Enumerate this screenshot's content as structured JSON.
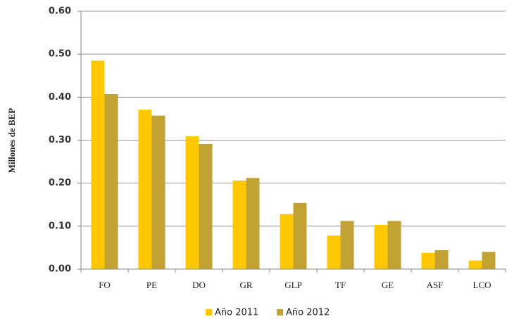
{
  "chart_data": {
    "type": "bar",
    "ylabel": "Millones de BEP",
    "categories": [
      "FO",
      "PE",
      "DO",
      "GR",
      "GLP",
      "TF",
      "GE",
      "ASF",
      "LCO"
    ],
    "series": [
      {
        "name": "Año 2011",
        "color": "#ffc800",
        "values": [
          0.485,
          0.371,
          0.309,
          0.206,
          0.128,
          0.078,
          0.103,
          0.038,
          0.02
        ]
      },
      {
        "name": "Año 2012",
        "color": "#c2a232",
        "values": [
          0.407,
          0.357,
          0.291,
          0.212,
          0.154,
          0.112,
          0.112,
          0.044,
          0.04
        ]
      }
    ],
    "ylim": [
      0,
      0.6
    ],
    "yticks": [
      {
        "value": 0,
        "label": "0.00"
      },
      {
        "value": 0.1,
        "label": "0.10"
      },
      {
        "value": 0.2,
        "label": "0.20"
      },
      {
        "value": 0.3,
        "label": "0.30"
      },
      {
        "value": 0.4,
        "label": "0.40"
      },
      {
        "value": 0.5,
        "label": "0.50"
      },
      {
        "value": 0.6,
        "label": "0.60"
      }
    ],
    "grid": true,
    "legend": "bottom"
  }
}
